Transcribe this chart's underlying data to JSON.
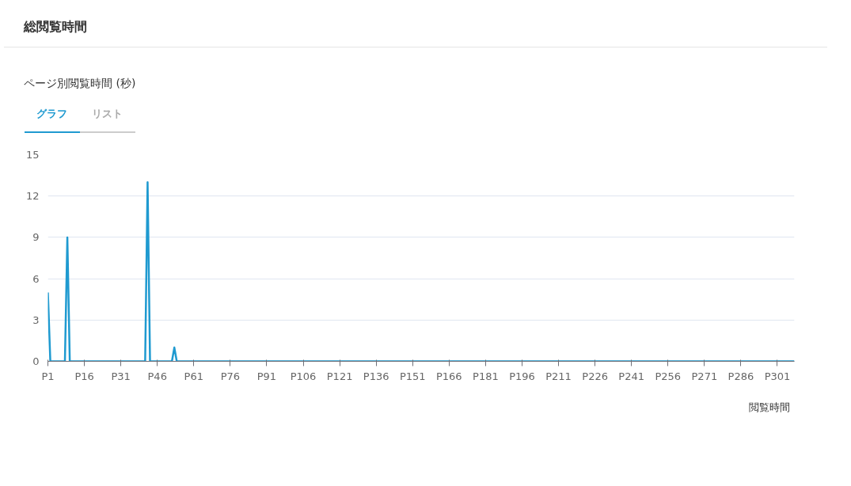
{
  "chart_data": {
    "type": "line",
    "title": "総閲覧時間",
    "subtitle": "ページ別閲覧時間 (秒)",
    "annotations": [
      "グラフ",
      "リスト"
    ],
    "categories": [
      "P1",
      null,
      null,
      null,
      null,
      null,
      null,
      null,
      null,
      null,
      null,
      null,
      null,
      null,
      null,
      "P16",
      null,
      null,
      null,
      null,
      null,
      null,
      null,
      null,
      null,
      null,
      null,
      null,
      null,
      null,
      "P31",
      null,
      null,
      null,
      null,
      null,
      null,
      null,
      null,
      null,
      null,
      null,
      null,
      null,
      null,
      "P46",
      null,
      null,
      null,
      null,
      null,
      null,
      null,
      null,
      null,
      null,
      null,
      null,
      null,
      null,
      "P61",
      null,
      null,
      null,
      null,
      null,
      null,
      null,
      null,
      null,
      null,
      null,
      null,
      null,
      null,
      "P76",
      null,
      null,
      null,
      null,
      null,
      null,
      null,
      null,
      null,
      null,
      null,
      null,
      null,
      null,
      "P91",
      null,
      null,
      null,
      null,
      null,
      null,
      null,
      null,
      null,
      null,
      null,
      null,
      null,
      null,
      "P106",
      null,
      null,
      null,
      null,
      null,
      null,
      null,
      null,
      null,
      null,
      null,
      null,
      null,
      null,
      "P121",
      null,
      null,
      null,
      null,
      null,
      null,
      null,
      null,
      null,
      null,
      null,
      null,
      null,
      null,
      "P136",
      null,
      null,
      null,
      null,
      null,
      null,
      null,
      null,
      null,
      null,
      null,
      null,
      null,
      null,
      "P151",
      null,
      null,
      null,
      null,
      null,
      null,
      null,
      null,
      null,
      null,
      null,
      null,
      null,
      null,
      "P166",
      null,
      null,
      null,
      null,
      null,
      null,
      null,
      null,
      null,
      null,
      null,
      null,
      null,
      null,
      "P181",
      null,
      null,
      null,
      null,
      null,
      null,
      null,
      null,
      null,
      null,
      null,
      null,
      null,
      null,
      "P196",
      null,
      null,
      null,
      null,
      null,
      null,
      null,
      null,
      null,
      null,
      null,
      null,
      null,
      null,
      "P211",
      null,
      null,
      null,
      null,
      null,
      null,
      null,
      null,
      null,
      null,
      null,
      null,
      null,
      null,
      "P226",
      null,
      null,
      null,
      null,
      null,
      null,
      null,
      null,
      null,
      null,
      null,
      null,
      null,
      null,
      "P241",
      null,
      null,
      null,
      null,
      null,
      null,
      null,
      null,
      null,
      null,
      null,
      null,
      null,
      null,
      "P256",
      null,
      null,
      null,
      null,
      null,
      null,
      null,
      null,
      null,
      null,
      null,
      null,
      null,
      null,
      "P271",
      null,
      null,
      null,
      null,
      null,
      null,
      null,
      null,
      null,
      null,
      null,
      null,
      null,
      null,
      "P286",
      null,
      null,
      null,
      null,
      null,
      null,
      null,
      null,
      null,
      null,
      null,
      null,
      null,
      null,
      "P301",
      null,
      null,
      null,
      null,
      null,
      null,
      null
    ],
    "series": [
      {
        "name": "閲覧時間",
        "color": "#1f9ad0",
        "values": [
          5,
          0,
          0,
          0,
          0,
          0,
          0,
          0,
          9,
          0,
          0,
          0,
          0,
          0,
          0,
          0,
          0,
          0,
          0,
          0,
          0,
          0,
          0,
          0,
          0,
          0,
          0,
          0,
          0,
          0,
          0,
          0,
          0,
          0,
          0,
          0,
          0,
          0,
          0,
          0,
          0,
          13,
          0,
          0,
          0,
          0,
          0,
          0,
          0,
          0,
          0,
          0,
          1,
          0,
          0,
          0,
          0,
          0,
          0,
          0,
          0,
          0,
          0,
          0,
          0,
          0,
          0,
          0,
          0,
          0,
          0,
          0,
          0,
          0,
          0,
          0,
          0,
          0,
          0,
          0,
          0,
          0,
          0,
          0,
          0,
          0,
          0,
          0,
          0,
          0,
          0,
          0,
          0,
          0,
          0,
          0,
          0,
          0,
          0,
          0,
          0,
          0,
          0,
          0,
          0,
          0,
          0,
          0,
          0,
          0,
          0,
          0,
          0,
          0,
          0,
          0,
          0,
          0,
          0,
          0,
          0,
          0,
          0,
          0,
          0,
          0,
          0,
          0,
          0,
          0,
          0,
          0,
          0,
          0,
          0,
          0,
          0,
          0,
          0,
          0,
          0,
          0,
          0,
          0,
          0,
          0,
          0,
          0,
          0,
          0,
          0,
          0,
          0,
          0,
          0,
          0,
          0,
          0,
          0,
          0,
          0,
          0,
          0,
          0,
          0,
          0,
          0,
          0,
          0,
          0,
          0,
          0,
          0,
          0,
          0,
          0,
          0,
          0,
          0,
          0,
          0,
          0,
          0,
          0,
          0,
          0,
          0,
          0,
          0,
          0,
          0,
          0,
          0,
          0,
          0,
          0,
          0,
          0,
          0,
          0,
          0,
          0,
          0,
          0,
          0,
          0,
          0,
          0,
          0,
          0,
          0,
          0,
          0,
          0,
          0,
          0,
          0,
          0,
          0,
          0,
          0,
          0,
          0,
          0,
          0,
          0,
          0,
          0,
          0,
          0,
          0,
          0,
          0,
          0,
          0,
          0,
          0,
          0,
          0,
          0,
          0,
          0,
          0,
          0,
          0,
          0,
          0,
          0,
          0,
          0,
          0,
          0,
          0,
          0,
          0,
          0,
          0,
          0,
          0,
          0,
          0,
          0,
          0,
          0,
          0,
          0,
          0,
          0,
          0,
          0,
          0,
          0,
          0,
          0,
          0,
          0,
          0,
          0,
          0,
          0,
          0,
          0,
          0,
          0,
          0,
          0,
          0,
          0,
          0,
          0,
          0,
          0,
          0,
          0,
          0,
          0,
          0,
          0,
          0,
          0,
          0,
          0,
          0,
          0,
          0,
          0,
          0,
          0
        ]
      }
    ],
    "ylim": [
      0,
      15
    ],
    "yticks": [
      0,
      3,
      6,
      9,
      12,
      15
    ],
    "grid": "y",
    "legend": "bottom right",
    "line_style": "solid"
  }
}
